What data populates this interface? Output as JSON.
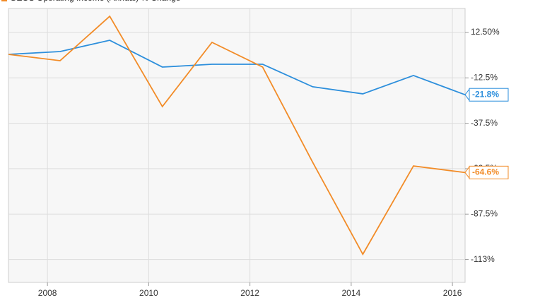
{
  "chart_data": {
    "type": "line",
    "x": [
      2007.23,
      2008.25,
      2009.23,
      2010.27,
      2011.25,
      2012.25,
      2013.24,
      2014.23,
      2015.23,
      2016.25
    ],
    "series": [
      {
        "color": "#2d8fdc",
        "values": [
          0.45,
          2.0,
          8.2,
          -6.55,
          -5.0,
          -5.0,
          -17.4,
          -21.3,
          -11.2,
          -21.8
        ],
        "value_labels": [
          null,
          null,
          null,
          null,
          null,
          null,
          null,
          null,
          null,
          "-21.8%"
        ]
      },
      {
        "name": "GEOS Operating Income (Annual) % Change",
        "color": "#f28c28",
        "values": [
          0.45,
          -3.05,
          21.4,
          -28.3,
          7.06,
          -6.55,
          -59.0,
          -109.6,
          -61.0,
          -64.6
        ],
        "value_labels": [
          null,
          null,
          null,
          null,
          null,
          null,
          null,
          null,
          null,
          "-64.6%"
        ]
      }
    ],
    "xlim": [
      2007.23,
      2016.25
    ],
    "xticks": [
      2008,
      2010,
      2012,
      2014,
      2016
    ],
    "ylim": [
      -125.1,
      25.7
    ],
    "yticks": [
      {
        "value": 12.5,
        "label": "12.50%"
      },
      {
        "value": -12.5,
        "label": "-12.5%"
      },
      {
        "value": -37.5,
        "label": "-37.5%"
      },
      {
        "value": -62.5,
        "label": "-62.5%"
      },
      {
        "value": -87.5,
        "label": "-87.5%"
      },
      {
        "value": -112.5,
        "label": "-113%"
      }
    ],
    "grid": true
  }
}
